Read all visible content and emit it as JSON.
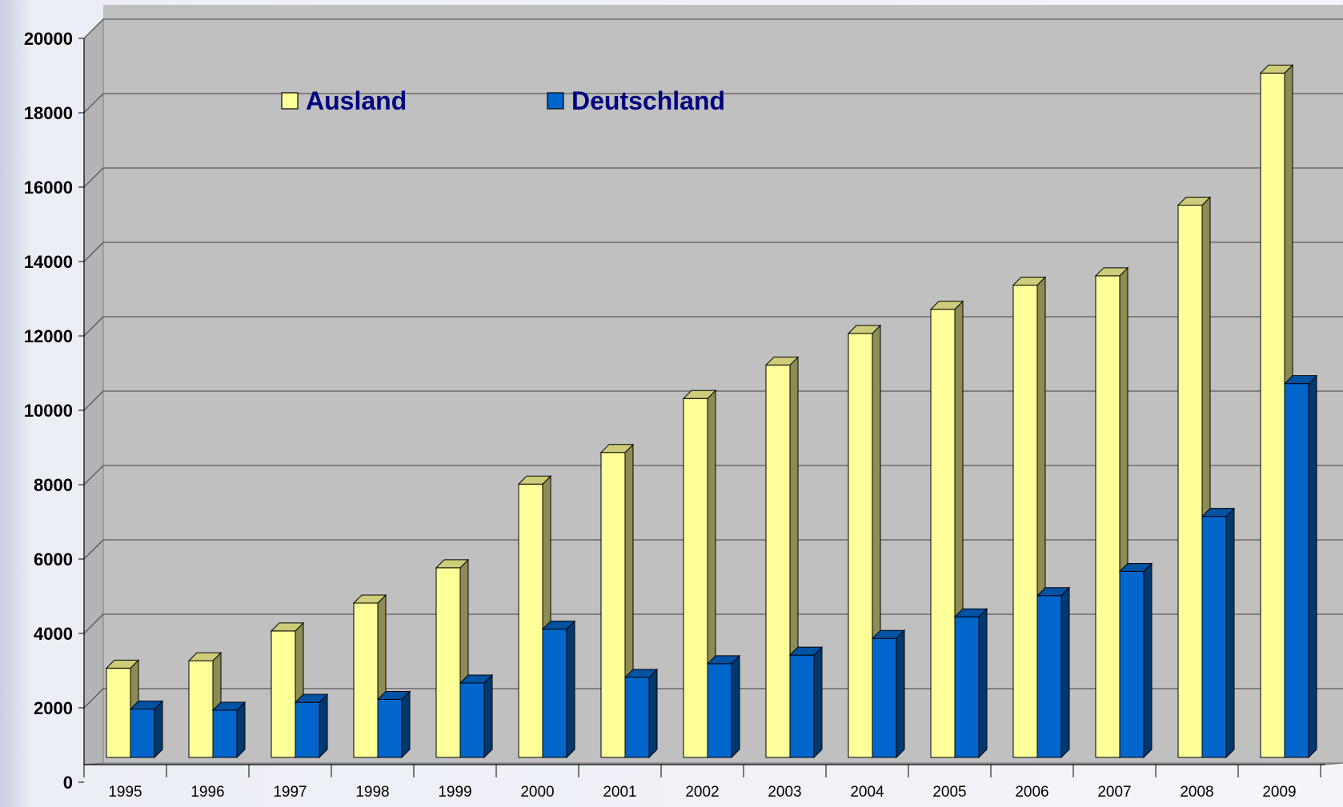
{
  "chart_data": {
    "type": "bar",
    "title": "",
    "xlabel": "",
    "ylabel": "",
    "categories": [
      "1995",
      "1996",
      "1997",
      "1998",
      "1999",
      "2000",
      "2001",
      "2002",
      "2003",
      "2004",
      "2005",
      "2006",
      "2007",
      "2008",
      "2009"
    ],
    "series": [
      {
        "name": "Ausland",
        "color": "#ffff99",
        "values": [
          2400,
          2600,
          3400,
          4150,
          5100,
          7350,
          8200,
          9650,
          10550,
          11400,
          12050,
          12700,
          12950,
          14850,
          18400
        ]
      },
      {
        "name": "Deutschland",
        "color": "#0066cc",
        "values": [
          1300,
          1270,
          1480,
          1560,
          2000,
          3450,
          2150,
          2520,
          2750,
          3200,
          3780,
          4350,
          5000,
          6480,
          10050
        ]
      }
    ],
    "ylim": [
      0,
      20000
    ],
    "yticks": [
      "0",
      "2000",
      "4000",
      "6000",
      "8000",
      "10000",
      "12000",
      "14000",
      "16000",
      "18000",
      "20000"
    ],
    "grid": true,
    "legend_position": "top-left",
    "three_d": true,
    "colors": {
      "background": "#c0c0c0",
      "ausland": "#ffff99",
      "deutschland": "#0066cc"
    }
  }
}
